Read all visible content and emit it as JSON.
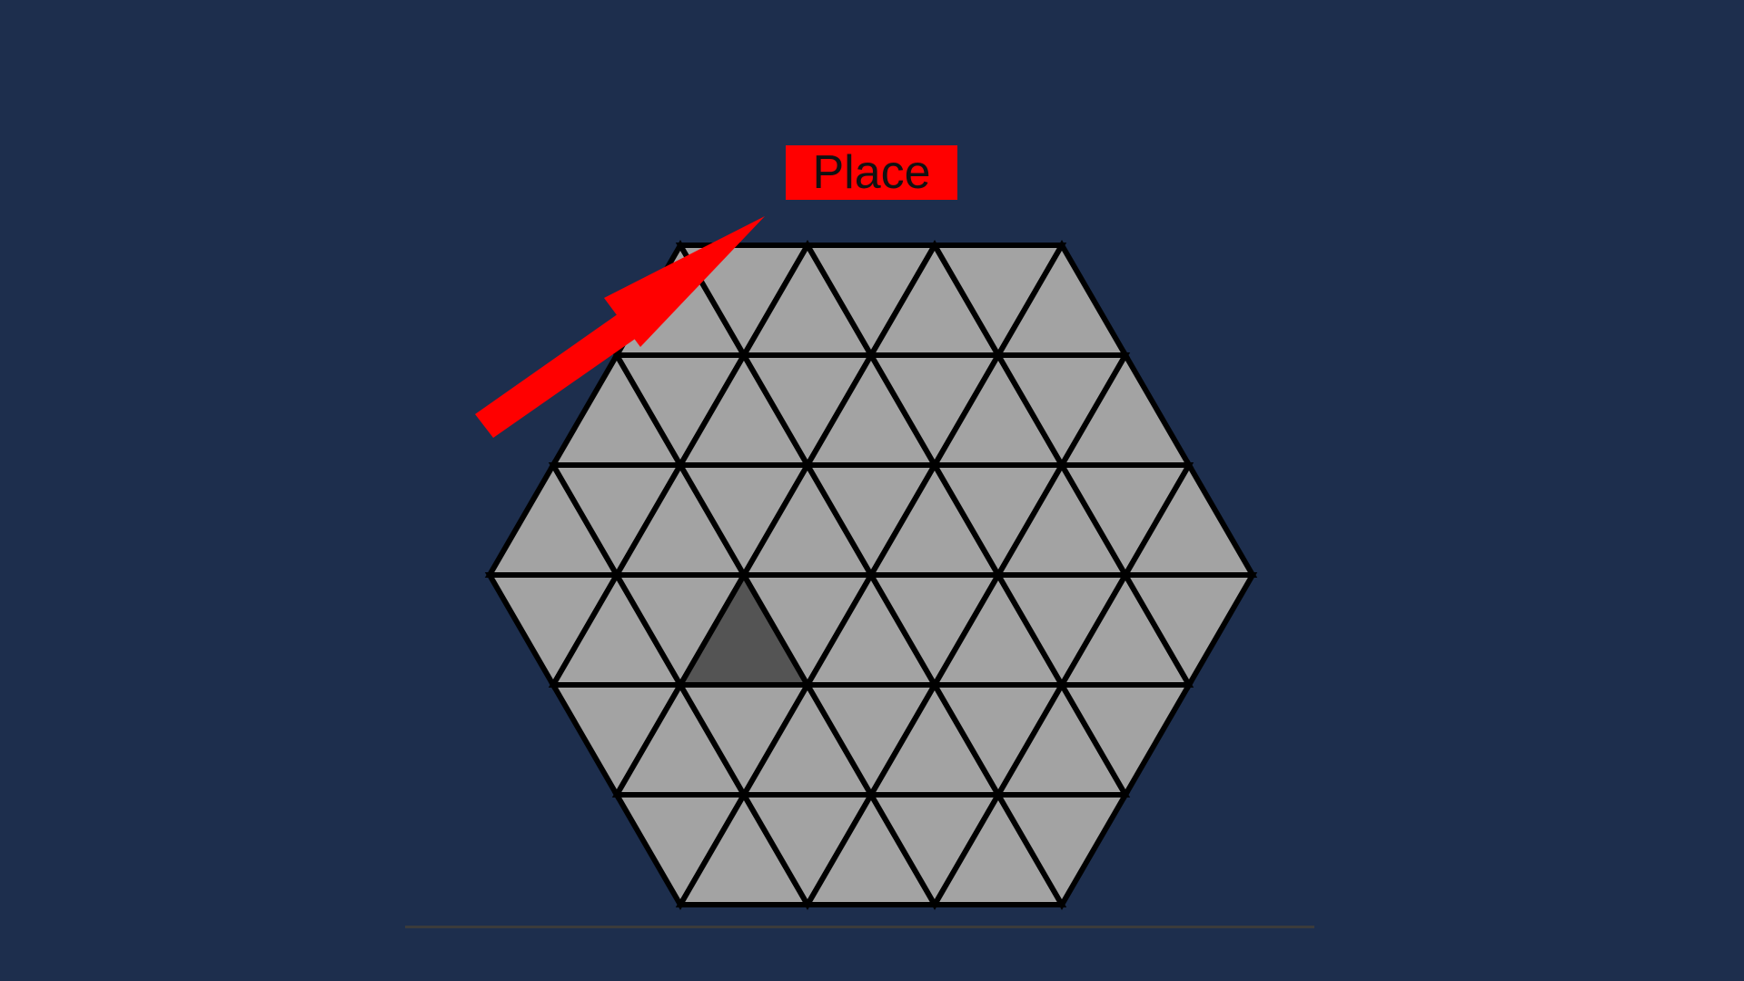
{
  "place_button": {
    "label": "Place",
    "color": "#ff0000"
  },
  "hint_arrow": {
    "icon": "arrow-up-right-icon",
    "color": "#ff0000",
    "points_to": "place_button"
  },
  "board": {
    "shape": "hexagon",
    "cell_shape": "triangle",
    "side_length_cells": 3,
    "rows": [
      {
        "row": 0,
        "cells": 7
      },
      {
        "row": 1,
        "cells": 9
      },
      {
        "row": 2,
        "cells": 11
      },
      {
        "row": 3,
        "cells": 11
      },
      {
        "row": 4,
        "cells": 9
      },
      {
        "row": 5,
        "cells": 7
      }
    ],
    "empty_color": "#a3a3a3",
    "filled_color": "#545454",
    "grid_line_color": "#000000",
    "filled_cells": [
      {
        "row": 3,
        "index": 3
      }
    ]
  },
  "colors": {
    "background": "#1d2e4d",
    "baseline": "#3b3b3b"
  }
}
